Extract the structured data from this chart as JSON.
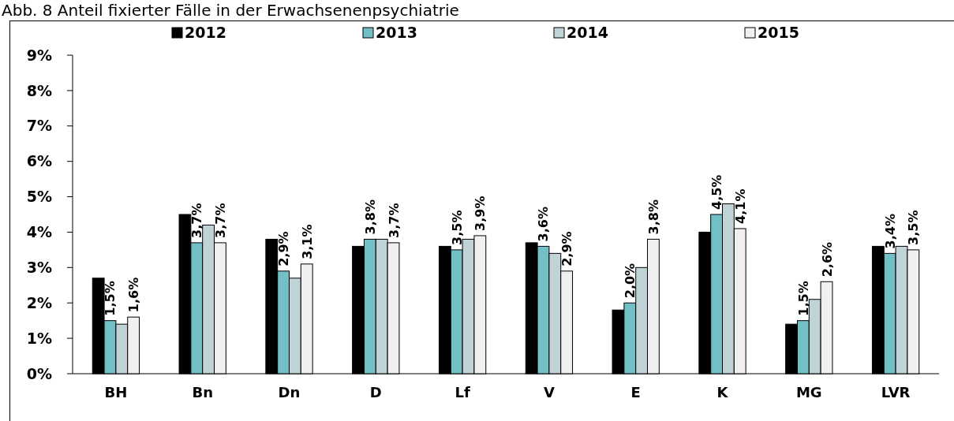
{
  "chart_data": {
    "type": "bar",
    "title": "Abb. 8 Anteil fixierter Fälle in der Erwachsenenpsychiatrie",
    "categories": [
      "BH",
      "Bn",
      "Dn",
      "D",
      "Lf",
      "V",
      "E",
      "K",
      "MG",
      "LVR"
    ],
    "series": [
      {
        "name": "2012",
        "color": "#000000",
        "values": [
          2.7,
          4.5,
          3.8,
          3.6,
          3.6,
          3.7,
          1.8,
          4.0,
          1.4,
          3.6
        ]
      },
      {
        "name": "2013",
        "color": "#72bfc5",
        "values": [
          1.5,
          3.7,
          2.9,
          3.8,
          3.5,
          3.6,
          2.0,
          4.5,
          1.5,
          3.4
        ],
        "value_labels": [
          "1,5%",
          "3,7%",
          "2,9%",
          "3,8%",
          "3,5%",
          "3,6%",
          "2,0%",
          "4,5%",
          "1,5%",
          "3,4%"
        ]
      },
      {
        "name": "2014",
        "color": "#c0d3d6",
        "values": [
          1.4,
          4.2,
          2.7,
          3.8,
          3.8,
          3.4,
          3.0,
          4.8,
          2.1,
          3.6
        ]
      },
      {
        "name": "2015",
        "color": "#f0f0f0",
        "values": [
          1.6,
          3.7,
          3.1,
          3.7,
          3.9,
          2.9,
          3.8,
          4.1,
          2.6,
          3.5
        ],
        "value_labels": [
          "1,6%",
          "3,7%",
          "3,1%",
          "3,7%",
          "3,9%",
          "2,9%",
          "3,8%",
          "4,1%",
          "2,6%",
          "3,5%"
        ]
      }
    ],
    "ylim": [
      0,
      9
    ],
    "yticks": [
      {
        "value": 0,
        "label": "0%"
      },
      {
        "value": 1,
        "label": "1%"
      },
      {
        "value": 2,
        "label": "2%"
      },
      {
        "value": 3,
        "label": "3%"
      },
      {
        "value": 4,
        "label": "4%"
      },
      {
        "value": 5,
        "label": "5%"
      },
      {
        "value": 6,
        "label": "6%"
      },
      {
        "value": 7,
        "label": "7%"
      },
      {
        "value": 8,
        "label": "8%"
      },
      {
        "value": 9,
        "label": "9%"
      }
    ],
    "grid": false,
    "legend": "top"
  }
}
